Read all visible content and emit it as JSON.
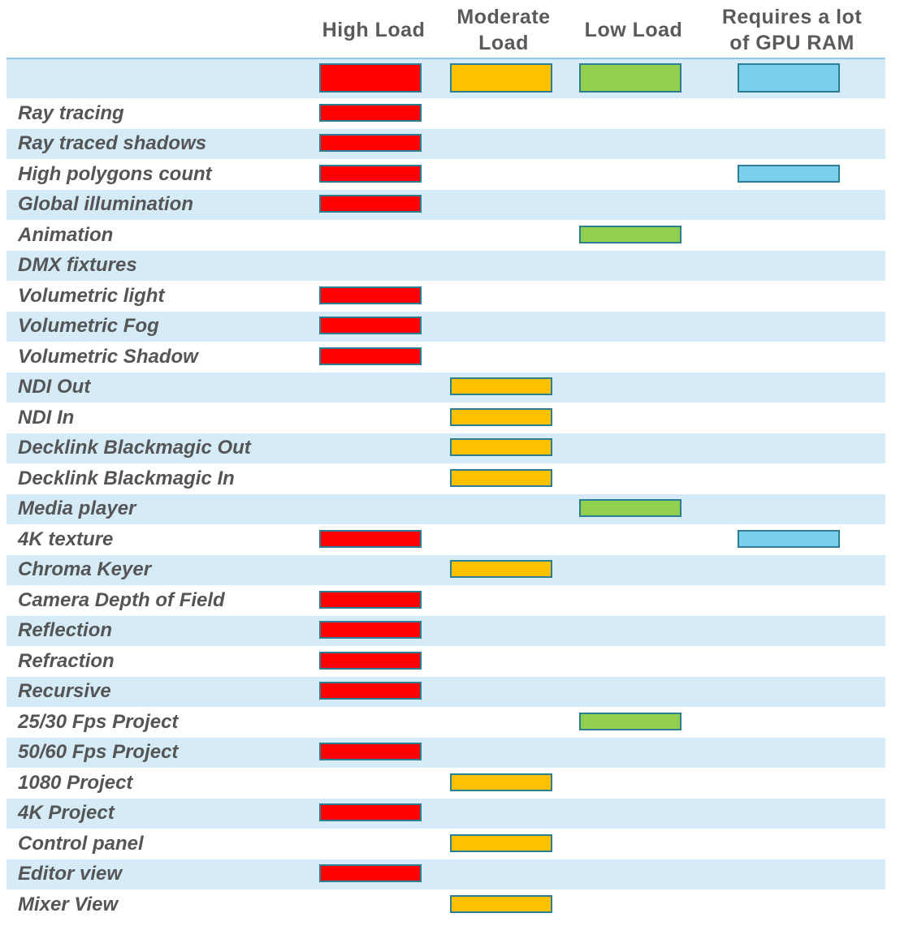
{
  "columns": [
    {
      "key": "high",
      "label": "High Load",
      "color": "#ff0000"
    },
    {
      "key": "moderate",
      "label": "Moderate\nLoad",
      "color": "#ffc000"
    },
    {
      "key": "low",
      "label": "Low Load",
      "color": "#92d050"
    },
    {
      "key": "gpu",
      "label": "Requires a lot\nof GPU RAM",
      "color": "#7ccfef"
    }
  ],
  "rows": [
    {
      "label": "Ray tracing",
      "marks": [
        "high"
      ]
    },
    {
      "label": "Ray traced shadows",
      "marks": [
        "high"
      ]
    },
    {
      "label": "High polygons count",
      "marks": [
        "high",
        "gpu"
      ]
    },
    {
      "label": "Global illumination",
      "marks": [
        "high"
      ]
    },
    {
      "label": "Animation",
      "marks": [
        "low"
      ]
    },
    {
      "label": "DMX fixtures",
      "marks": []
    },
    {
      "label": "Volumetric light",
      "marks": [
        "high"
      ]
    },
    {
      "label": "Volumetric Fog",
      "marks": [
        "high"
      ]
    },
    {
      "label": "Volumetric Shadow",
      "marks": [
        "high"
      ]
    },
    {
      "label": "NDI Out",
      "marks": [
        "moderate"
      ]
    },
    {
      "label": "NDI In",
      "marks": [
        "moderate"
      ]
    },
    {
      "label": "Decklink Blackmagic Out",
      "marks": [
        "moderate"
      ]
    },
    {
      "label": "Decklink Blackmagic In",
      "marks": [
        "moderate"
      ]
    },
    {
      "label": "Media player",
      "marks": [
        "low"
      ]
    },
    {
      "label": "4K texture",
      "marks": [
        "high",
        "gpu"
      ]
    },
    {
      "label": "Chroma Keyer",
      "marks": [
        "moderate"
      ]
    },
    {
      "label": "Camera Depth of Field",
      "marks": [
        "high"
      ]
    },
    {
      "label": "Reflection",
      "marks": [
        "high"
      ]
    },
    {
      "label": "Refraction",
      "marks": [
        "high"
      ]
    },
    {
      "label": "Recursive",
      "marks": [
        "high"
      ]
    },
    {
      "label": "25/30 Fps Project",
      "marks": [
        "low"
      ]
    },
    {
      "label": "50/60 Fps Project",
      "marks": [
        "high"
      ]
    },
    {
      "label": "1080 Project",
      "marks": [
        "moderate"
      ]
    },
    {
      "label": "4K Project",
      "marks": [
        "high"
      ]
    },
    {
      "label": "Control panel",
      "marks": [
        "moderate"
      ]
    },
    {
      "label": "Editor view",
      "marks": [
        "high"
      ]
    },
    {
      "label": "Mixer View",
      "marks": [
        "moderate"
      ]
    }
  ],
  "colors": {
    "row_shade": "#d5ecf8",
    "bar_border": "#2c7f93",
    "text": "#555555"
  }
}
